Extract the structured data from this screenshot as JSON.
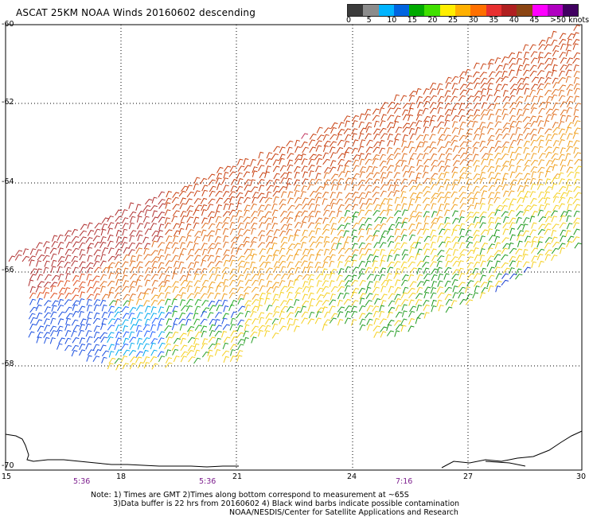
{
  "title": "ASCAT 25KM NOAA Winds 20160602 descending",
  "colorbar": {
    "colors": [
      "#3b3b3b",
      "#8c8c8c",
      "#00b4ff",
      "#0064e0",
      "#00aa00",
      "#40e000",
      "#ffee00",
      "#ffb000",
      "#ff7000",
      "#e83030",
      "#b02020",
      "#8b4513",
      "#ff00ff",
      "#b000c0",
      "#400060"
    ],
    "labels": [
      "0",
      "5",
      "10",
      "15",
      "20",
      "25",
      "30",
      "35",
      "40",
      "45",
      ">50 knots"
    ]
  },
  "lat_labels": [
    "-60",
    "-62",
    "-64",
    "-66",
    "-68",
    "-70"
  ],
  "lon_labels": [
    "15",
    "18",
    "21",
    "24",
    "27",
    "30"
  ],
  "time_labels": [
    "5:36",
    "5:36",
    "7:16"
  ],
  "note": {
    "line1": "Note: 1) Times are GMT 2)Times along bottom correspond to measurement at ~65S",
    "line2": "3)Data buffer is 22 hrs from 20160602 4) Black wind barbs indicate possible contamination",
    "line3": "NOAA/NESDIS/Center for Satellite Applications and Research"
  }
}
